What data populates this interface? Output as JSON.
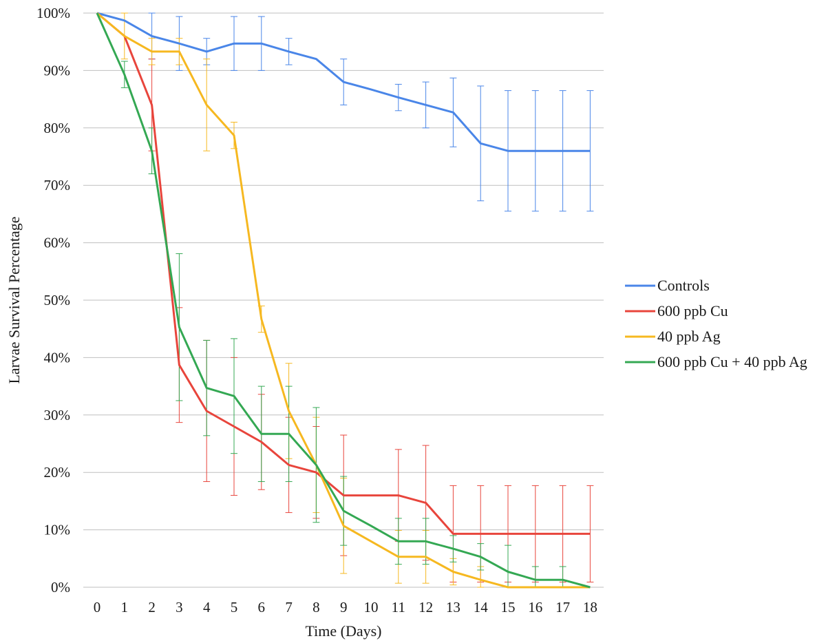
{
  "chart_data": {
    "type": "line",
    "xlabel": "Time (Days)",
    "ylabel": "Larvae Survival Percentage",
    "x": [
      0,
      1,
      2,
      3,
      4,
      5,
      6,
      7,
      8,
      9,
      10,
      11,
      12,
      13,
      14,
      15,
      16,
      17,
      18
    ],
    "ylim": [
      0,
      100
    ],
    "yticks": [
      "0%",
      "10%",
      "20%",
      "30%",
      "40%",
      "50%",
      "60%",
      "70%",
      "80%",
      "90%",
      "100%"
    ],
    "grid": "horizontal",
    "legend_position": "right",
    "error_bars": true,
    "series": [
      {
        "name": "Controls",
        "color": "#4a86e8",
        "values": [
          100,
          98.7,
          96,
          94.7,
          93.3,
          94.7,
          94.7,
          93.3,
          92,
          88,
          86.7,
          85.3,
          84,
          82.7,
          77.3,
          76,
          76,
          76,
          76
        ],
        "errors": [
          0,
          0,
          4,
          4.7,
          2.3,
          4.7,
          4.7,
          2.3,
          0,
          4,
          0,
          2.3,
          4,
          6,
          10,
          10.5,
          10.5,
          10.5,
          10.5
        ]
      },
      {
        "name": "600 ppb Cu",
        "color": "#e8453c",
        "values": [
          100,
          96,
          84,
          38.7,
          30.7,
          28,
          25.3,
          21.3,
          20,
          16,
          16,
          16,
          14.7,
          9.3,
          9.3,
          9.3,
          9.3,
          9.3,
          9.3
        ],
        "errors": [
          0,
          0,
          8,
          10,
          12.3,
          12,
          8.3,
          8.3,
          8,
          10.5,
          0,
          8,
          10,
          8.4,
          8.4,
          8.4,
          8.4,
          8.4,
          8.4
        ]
      },
      {
        "name": "40 ppb Ag",
        "color": "#f6b820",
        "values": [
          100,
          96,
          93.3,
          93.3,
          84,
          78.7,
          46.7,
          30.7,
          21.3,
          10.7,
          8,
          5.3,
          5.3,
          2.7,
          1.3,
          0,
          0,
          0,
          0
        ],
        "errors": [
          0,
          4,
          2.3,
          2.3,
          8,
          2.3,
          2.3,
          8.3,
          8.3,
          8.3,
          0,
          4.6,
          4.6,
          2.3,
          2.3,
          0,
          0,
          0,
          0
        ]
      },
      {
        "name": "600 ppb Cu + 40 ppb Ag",
        "color": "#34a853",
        "values": [
          100,
          89.3,
          76,
          45.3,
          34.7,
          33.3,
          26.7,
          26.7,
          21.3,
          13.3,
          10.7,
          8,
          8,
          6.7,
          5.3,
          2.7,
          1.3,
          1.3,
          0
        ],
        "errors": [
          0,
          2.3,
          4,
          12.8,
          8.3,
          10,
          8.3,
          8.3,
          10,
          6,
          0,
          4,
          4,
          2.3,
          2.3,
          4.6,
          2.3,
          2.3,
          0
        ]
      }
    ]
  }
}
